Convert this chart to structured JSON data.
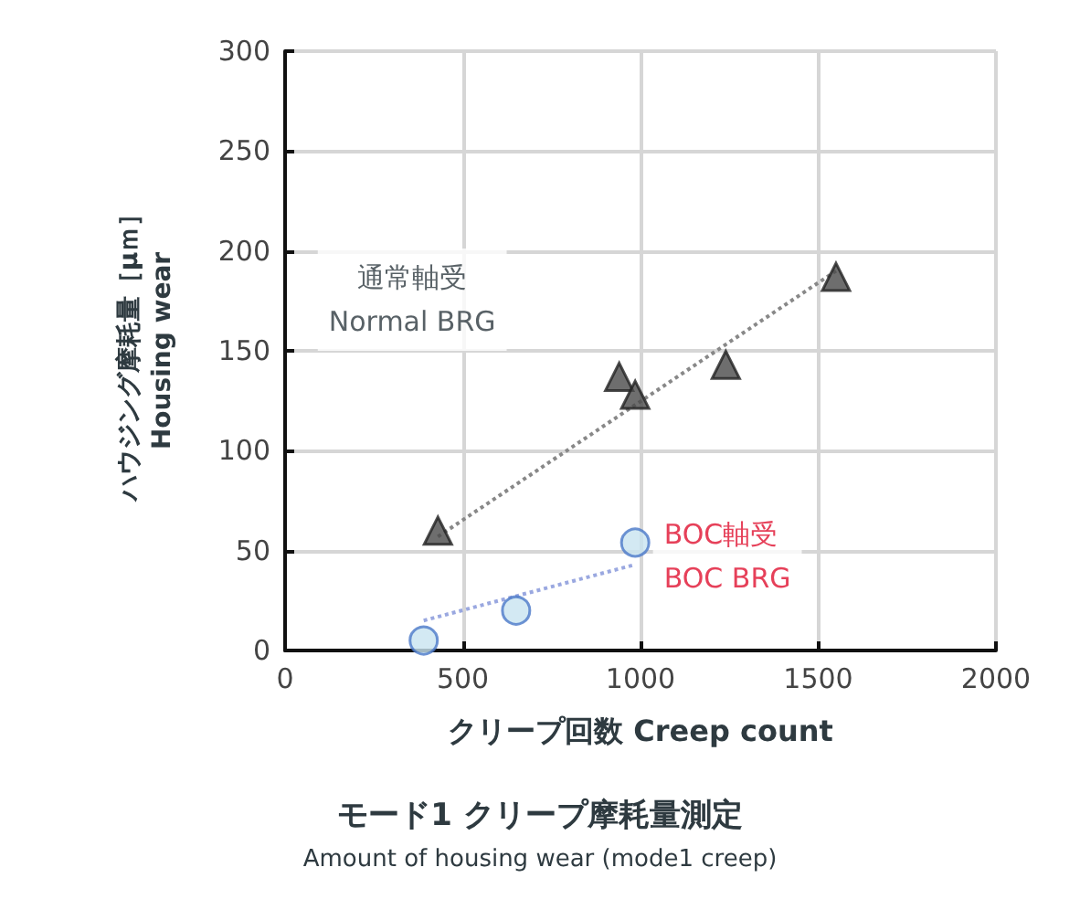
{
  "chart_data": {
    "type": "scatter",
    "title": "モード1 クリープ摩耗量測定",
    "subtitle": "Amount of housing wear (mode1 creep)",
    "xlabel": "クリープ回数 Creep count",
    "ylabel": "ハウジング摩耗量［μｍ］\nHousing wear",
    "xlim": [
      0,
      2000
    ],
    "xticks": [
      0,
      500,
      1000,
      1500,
      2000
    ],
    "ylim": [
      0,
      300
    ],
    "yticks": [
      0,
      50,
      100,
      150,
      200,
      250,
      300
    ],
    "grid": true,
    "legend": false,
    "series": [
      {
        "name": "通常軸受\nNormal BRG",
        "color": "#4a4a4a",
        "marker": "triangle",
        "x": [
          430,
          940,
          985,
          1240,
          1550
        ],
        "values": [
          60,
          137,
          128,
          143,
          187
        ]
      },
      {
        "name": "BOC軸受\nBOC BRG",
        "color": "#c8e4f0",
        "marker": "circle",
        "x": [
          390,
          650,
          985
        ],
        "values": [
          5,
          20,
          54
        ]
      },
      {
        "type": "line",
        "color": "#888888",
        "line_style": "dotted",
        "marker": "none",
        "x": [
          430,
          1550
        ],
        "values": [
          57,
          190
        ]
      },
      {
        "type": "line",
        "color": "#9aa8e0",
        "line_style": "dotted",
        "marker": "none",
        "x": [
          390,
          985
        ],
        "values": [
          15,
          43
        ]
      }
    ]
  }
}
